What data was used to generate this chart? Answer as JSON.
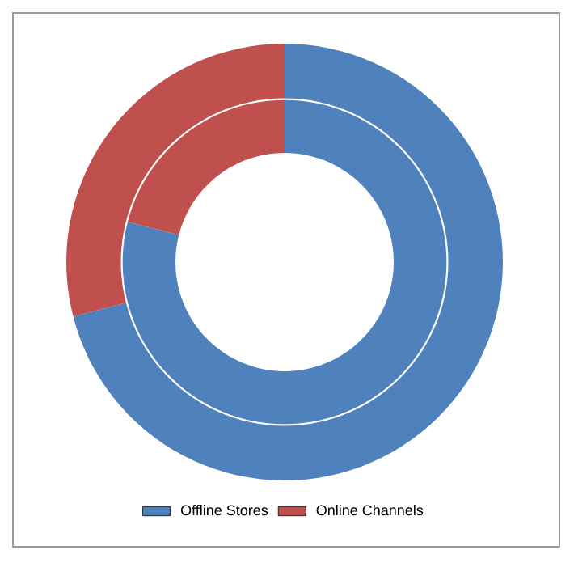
{
  "chart_data": {
    "type": "donut",
    "categories": [
      "Offline Stores",
      "Online Channels"
    ],
    "series": [
      {
        "values": [
          79,
          21
        ],
        "colors": [
          "#4f81bd",
          "#c0504d"
        ]
      },
      {
        "values": [
          71,
          29
        ],
        "colors": [
          "#4f81bd",
          "#c0504d"
        ]
      }
    ],
    "legend": "bottom"
  }
}
